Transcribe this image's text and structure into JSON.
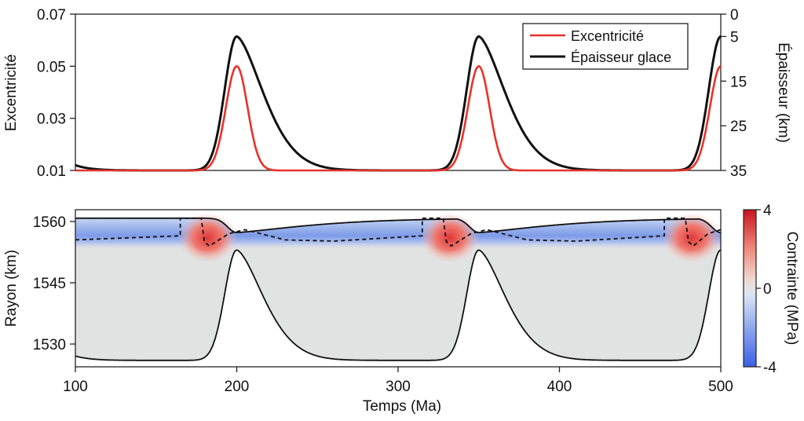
{
  "chart_data": [
    {
      "type": "line",
      "title": "",
      "xlabel": "",
      "ylabel": "Excentricité",
      "ylabel_right": "Épaisseur (km)",
      "xlim": [
        100,
        500
      ],
      "ylim": [
        0.01,
        0.07
      ],
      "ylim_right": [
        35,
        0
      ],
      "yticks": [
        "0.07",
        "0.05",
        "0.03",
        "0.01"
      ],
      "yticks_right": [
        "0",
        "5",
        "15",
        "25",
        "35"
      ],
      "legend": {
        "position": "top-right",
        "entries": [
          "Excentricité",
          "Épaisseur glace"
        ]
      },
      "series": [
        {
          "name": "Excentricité",
          "color": "#e8322a",
          "axis": "left",
          "description": "baseline 0.01 with Gaussian-like peaks of 0.05 at t=200, 350, 500",
          "peaks": [
            {
              "t": 200,
              "value": 0.05
            },
            {
              "t": 350,
              "value": 0.05
            },
            {
              "t": 500,
              "value": 0.05
            }
          ],
          "baseline": 0.01
        },
        {
          "name": "Épaisseur glace",
          "color": "#111111",
          "axis": "right",
          "description": "ice thickness (km, inverted axis) minimum ~5 km at peaks, relaxing toward 35 km",
          "peaks": [
            {
              "t": 200,
              "value": 5
            },
            {
              "t": 350,
              "value": 5
            },
            {
              "t": 500,
              "value": 5
            }
          ],
          "baseline": 35
        }
      ]
    },
    {
      "type": "heatmap",
      "title": "",
      "xlabel": "Temps (Ma)",
      "ylabel": "Rayon (km)",
      "xlim": [
        100,
        500
      ],
      "ylim": [
        1525,
        1562
      ],
      "xticks": [
        "100",
        "200",
        "300",
        "400",
        "500"
      ],
      "yticks": [
        "1560",
        "1545",
        "1530"
      ],
      "colorbar": {
        "label": "Contrainte (MPa)",
        "range": [
          -4,
          4
        ],
        "ticks": [
          "4",
          "0",
          "-4"
        ],
        "colors": {
          "min": "#3b5fe6",
          "mid": "#e3e3e3",
          "max": "#c8141e"
        }
      },
      "surface_radius_km": 1560.8,
      "ocean_top_peak_km": 1553,
      "ocean_top_min_km": 1526
    }
  ]
}
